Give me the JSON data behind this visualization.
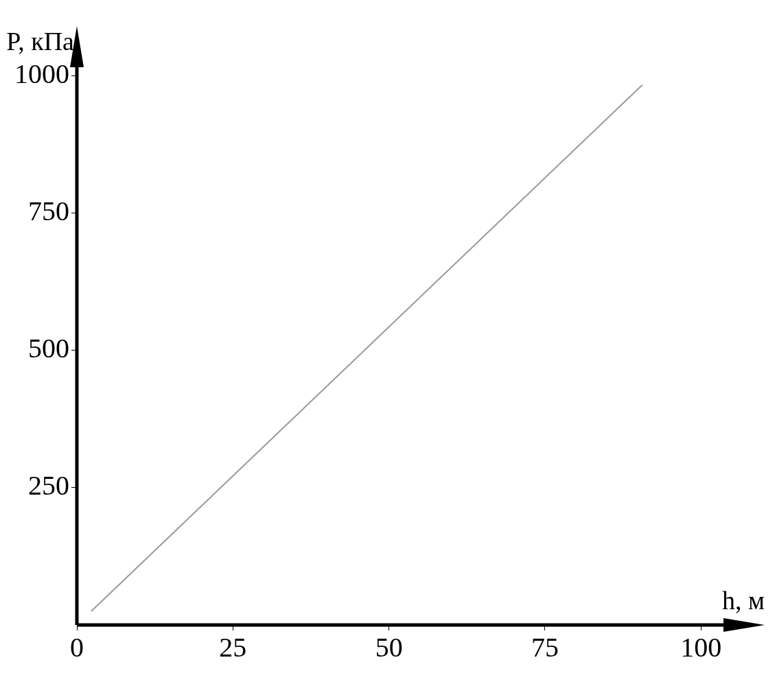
{
  "chart_data": {
    "type": "line",
    "xlabel": "h, м",
    "ylabel": "P, кПа",
    "x": [
      2.3,
      90.6
    ],
    "series": [
      {
        "color": "#999999",
        "values": [
          25,
          983
        ]
      }
    ],
    "xlim": [
      0,
      108
    ],
    "ylim": [
      0,
      1065
    ],
    "xticks": [
      0,
      25,
      50,
      75,
      100
    ],
    "yticks": [
      250,
      500,
      750,
      1000
    ],
    "marker": "none",
    "line_style": "solid",
    "legend": false
  }
}
